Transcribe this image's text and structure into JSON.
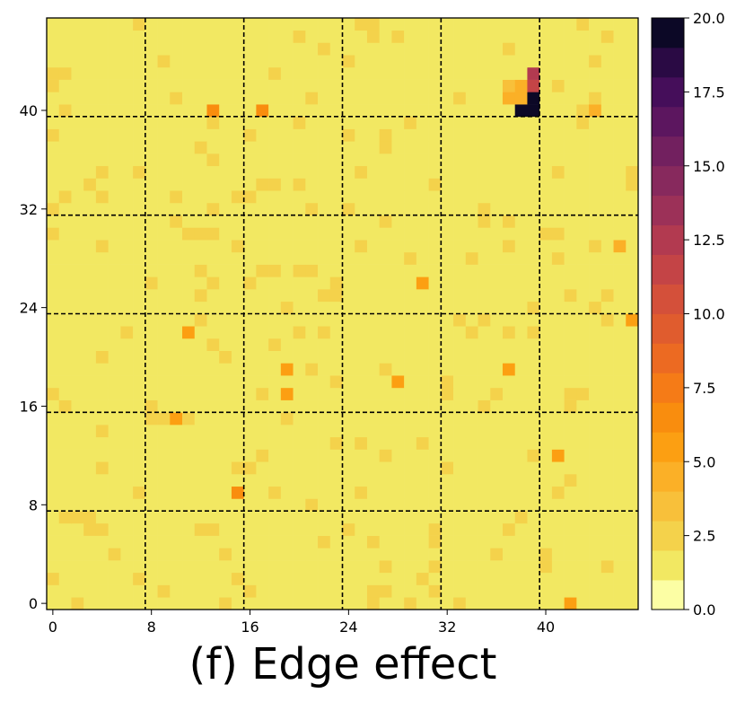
{
  "chart_data": {
    "type": "heatmap",
    "title": "",
    "caption": "(f) Edge effect",
    "xlabel": "",
    "ylabel": "",
    "grid_size": 48,
    "xlim": [
      -0.5,
      47.5
    ],
    "ylim": [
      -0.5,
      47.5
    ],
    "x_ticks": [
      0,
      8,
      16,
      24,
      32,
      40
    ],
    "x_tick_labels": [
      "0",
      "8",
      "16",
      "24",
      "32",
      "40"
    ],
    "y_ticks": [
      0,
      8,
      16,
      24,
      32,
      40
    ],
    "y_tick_labels": [
      "0",
      "8",
      "16",
      "24",
      "32",
      "40"
    ],
    "block_boundaries": [
      7.5,
      15.5,
      23.5,
      31.5,
      39.5
    ],
    "colormap": "inferno_r",
    "colorbar": {
      "vmin": 0.0,
      "vmax": 20.0,
      "levels": 20,
      "ticks": [
        0.0,
        2.5,
        5.0,
        7.5,
        10.0,
        12.5,
        15.0,
        17.5,
        20.0
      ],
      "tick_labels": [
        "0.0",
        "2.5",
        "5.0",
        "7.5",
        "10.0",
        "12.5",
        "15.0",
        "17.5",
        "20.0"
      ]
    },
    "background_range": [
      0.0,
      3.0
    ],
    "hotspots": [
      {
        "x": 39,
        "y": 40,
        "value": 20.0
      },
      {
        "x": 38,
        "y": 40,
        "value": 20.0
      },
      {
        "x": 39,
        "y": 41,
        "value": 19.5
      },
      {
        "x": 39,
        "y": 42,
        "value": 11.0
      },
      {
        "x": 39,
        "y": 43,
        "value": 12.5
      },
      {
        "x": 38,
        "y": 41,
        "value": 4.5
      },
      {
        "x": 37,
        "y": 41,
        "value": 4.0
      },
      {
        "x": 37,
        "y": 42,
        "value": 3.5
      },
      {
        "x": 38,
        "y": 42,
        "value": 4.0
      },
      {
        "x": 17,
        "y": 40,
        "value": 6.0
      },
      {
        "x": 13,
        "y": 40,
        "value": 6.0
      },
      {
        "x": 15,
        "y": 9,
        "value": 6.5
      },
      {
        "x": 30,
        "y": 26,
        "value": 5.5
      },
      {
        "x": 19,
        "y": 19,
        "value": 5.5
      },
      {
        "x": 19,
        "y": 17,
        "value": 5.5
      },
      {
        "x": 11,
        "y": 22,
        "value": 5.0
      },
      {
        "x": 10,
        "y": 15,
        "value": 5.0
      },
      {
        "x": 28,
        "y": 18,
        "value": 5.0
      },
      {
        "x": 37,
        "y": 19,
        "value": 5.0
      },
      {
        "x": 41,
        "y": 12,
        "value": 5.0
      },
      {
        "x": 42,
        "y": 0,
        "value": 5.5
      },
      {
        "x": 47,
        "y": 23,
        "value": 5.0
      },
      {
        "x": 46,
        "y": 29,
        "value": 4.0
      },
      {
        "x": 44,
        "y": 40,
        "value": 4.0
      }
    ]
  }
}
